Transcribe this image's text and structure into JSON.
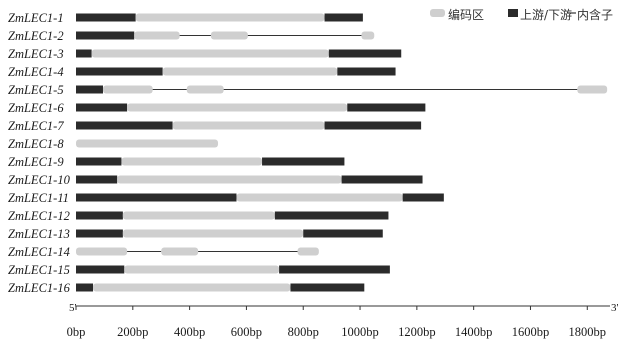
{
  "legend": {
    "cds": "编码区",
    "utr": "上游/下游",
    "intron": "内含子"
  },
  "axis": {
    "start_label": "5'",
    "end_label": "3'",
    "ticks": [
      {
        "value": 0,
        "label": "0bp"
      },
      {
        "value": 200,
        "label": "200bp"
      },
      {
        "value": 400,
        "label": "400bp"
      },
      {
        "value": 600,
        "label": "600bp"
      },
      {
        "value": 800,
        "label": "800bp"
      },
      {
        "value": 1000,
        "label": "1000bp"
      },
      {
        "value": 1200,
        "label": "1200bp"
      },
      {
        "value": 1400,
        "label": "1400bp"
      },
      {
        "value": 1600,
        "label": "1600bp"
      },
      {
        "value": 1800,
        "label": "1800bp"
      }
    ],
    "max": 1880
  },
  "colors": {
    "cds": "#cfcfcf",
    "utr": "#2b2b2b",
    "intron": "#333333"
  },
  "genes": [
    {
      "name": "ZmLEC1-1",
      "length": 1010,
      "segments": [
        {
          "type": "utr",
          "start": 0,
          "end": 210
        },
        {
          "type": "cds",
          "start": 210,
          "end": 875
        },
        {
          "type": "utr",
          "start": 875,
          "end": 1010
        }
      ]
    },
    {
      "name": "ZmLEC1-2",
      "length": 1050,
      "segments": [
        {
          "type": "utr",
          "start": 0,
          "end": 205
        },
        {
          "type": "cds",
          "start": 205,
          "end": 365
        },
        {
          "type": "intron",
          "start": 365,
          "end": 475
        },
        {
          "type": "cds",
          "start": 475,
          "end": 605
        },
        {
          "type": "intron",
          "start": 605,
          "end": 1005
        },
        {
          "type": "cds",
          "start": 1005,
          "end": 1050
        }
      ]
    },
    {
      "name": "ZmLEC1-3",
      "length": 1145,
      "segments": [
        {
          "type": "utr",
          "start": 0,
          "end": 55
        },
        {
          "type": "cds",
          "start": 55,
          "end": 890
        },
        {
          "type": "utr",
          "start": 890,
          "end": 1145
        }
      ]
    },
    {
      "name": "ZmLEC1-4",
      "length": 1125,
      "segments": [
        {
          "type": "utr",
          "start": 0,
          "end": 305
        },
        {
          "type": "cds",
          "start": 305,
          "end": 920
        },
        {
          "type": "utr",
          "start": 920,
          "end": 1125
        }
      ]
    },
    {
      "name": "ZmLEC1-5",
      "length": 1870,
      "segments": [
        {
          "type": "utr",
          "start": 0,
          "end": 95
        },
        {
          "type": "cds",
          "start": 95,
          "end": 270
        },
        {
          "type": "intron",
          "start": 270,
          "end": 390
        },
        {
          "type": "cds",
          "start": 390,
          "end": 520
        },
        {
          "type": "intron",
          "start": 520,
          "end": 1765
        },
        {
          "type": "cds",
          "start": 1765,
          "end": 1870
        }
      ]
    },
    {
      "name": "ZmLEC1-6",
      "length": 1230,
      "segments": [
        {
          "type": "utr",
          "start": 0,
          "end": 180
        },
        {
          "type": "cds",
          "start": 180,
          "end": 955
        },
        {
          "type": "utr",
          "start": 955,
          "end": 1230
        }
      ]
    },
    {
      "name": "ZmLEC1-7",
      "length": 1215,
      "segments": [
        {
          "type": "utr",
          "start": 0,
          "end": 340
        },
        {
          "type": "cds",
          "start": 340,
          "end": 875
        },
        {
          "type": "utr",
          "start": 875,
          "end": 1215
        }
      ]
    },
    {
      "name": "ZmLEC1-8",
      "length": 500,
      "segments": [
        {
          "type": "cds",
          "start": 0,
          "end": 500
        }
      ]
    },
    {
      "name": "ZmLEC1-9",
      "length": 945,
      "segments": [
        {
          "type": "utr",
          "start": 0,
          "end": 160
        },
        {
          "type": "cds",
          "start": 160,
          "end": 655
        },
        {
          "type": "utr",
          "start": 655,
          "end": 945
        }
      ]
    },
    {
      "name": "ZmLEC1-10",
      "length": 1220,
      "segments": [
        {
          "type": "utr",
          "start": 0,
          "end": 145
        },
        {
          "type": "cds",
          "start": 145,
          "end": 935
        },
        {
          "type": "utr",
          "start": 935,
          "end": 1220
        }
      ]
    },
    {
      "name": "ZmLEC1-11",
      "length": 1295,
      "segments": [
        {
          "type": "utr",
          "start": 0,
          "end": 565
        },
        {
          "type": "cds",
          "start": 565,
          "end": 1150
        },
        {
          "type": "utr",
          "start": 1150,
          "end": 1295
        }
      ]
    },
    {
      "name": "ZmLEC1-12",
      "length": 1100,
      "segments": [
        {
          "type": "utr",
          "start": 0,
          "end": 165
        },
        {
          "type": "cds",
          "start": 165,
          "end": 700
        },
        {
          "type": "utr",
          "start": 700,
          "end": 1100
        }
      ]
    },
    {
      "name": "ZmLEC1-13",
      "length": 1080,
      "segments": [
        {
          "type": "utr",
          "start": 0,
          "end": 165
        },
        {
          "type": "cds",
          "start": 165,
          "end": 800
        },
        {
          "type": "utr",
          "start": 800,
          "end": 1080
        }
      ]
    },
    {
      "name": "ZmLEC1-14",
      "length": 855,
      "segments": [
        {
          "type": "cds",
          "start": 0,
          "end": 180
        },
        {
          "type": "intron",
          "start": 180,
          "end": 300
        },
        {
          "type": "cds",
          "start": 300,
          "end": 430
        },
        {
          "type": "intron",
          "start": 430,
          "end": 780
        },
        {
          "type": "cds",
          "start": 780,
          "end": 855
        }
      ]
    },
    {
      "name": "ZmLEC1-15",
      "length": 1105,
      "segments": [
        {
          "type": "utr",
          "start": 0,
          "end": 170
        },
        {
          "type": "cds",
          "start": 170,
          "end": 715
        },
        {
          "type": "utr",
          "start": 715,
          "end": 1105
        }
      ]
    },
    {
      "name": "ZmLEC1-16",
      "length": 1015,
      "segments": [
        {
          "type": "utr",
          "start": 0,
          "end": 60
        },
        {
          "type": "cds",
          "start": 60,
          "end": 755
        },
        {
          "type": "utr",
          "start": 755,
          "end": 1015
        }
      ]
    }
  ]
}
